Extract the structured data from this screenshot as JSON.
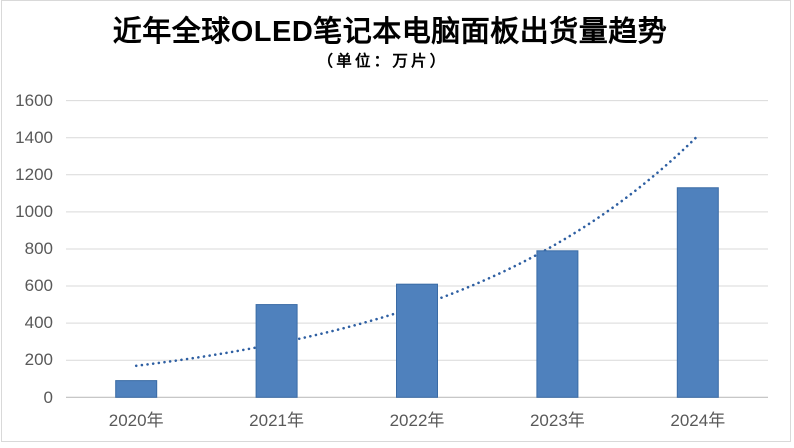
{
  "chart_data": {
    "type": "bar",
    "title": "近年全球OLED笔记本电脑面板出货量趋势",
    "title_parts": {
      "prefix": "近年全球",
      "brand": "OLED",
      "suffix": "笔记本电脑面板出货量趋势"
    },
    "subtitle": "（单位：万片）",
    "unit": "万片",
    "categories": [
      "2020年",
      "2021年",
      "2022年",
      "2023年",
      "2024年"
    ],
    "values": [
      90,
      500,
      610,
      790,
      1130
    ],
    "trendline": {
      "type": "exponential",
      "style": "dotted",
      "values": [
        170,
        290,
        490,
        830,
        1410
      ]
    },
    "xlabel": "",
    "ylabel": "",
    "ylim": [
      0,
      1600
    ],
    "ytick_step": 200,
    "yticks": [
      0,
      200,
      400,
      600,
      800,
      1000,
      1200,
      1400,
      1600
    ],
    "grid": true,
    "legend": false,
    "colors": {
      "bar_fill": "#4F81BD",
      "bar_border": "#3A6BA5",
      "trendline": "#2E5FA2",
      "gridline": "#D9D9D9",
      "axis_line": "#BFBFBF",
      "tick_label": "#595959",
      "title": "#000000",
      "chart_border": "#D9D9D9",
      "background": "#FFFFFF"
    }
  }
}
